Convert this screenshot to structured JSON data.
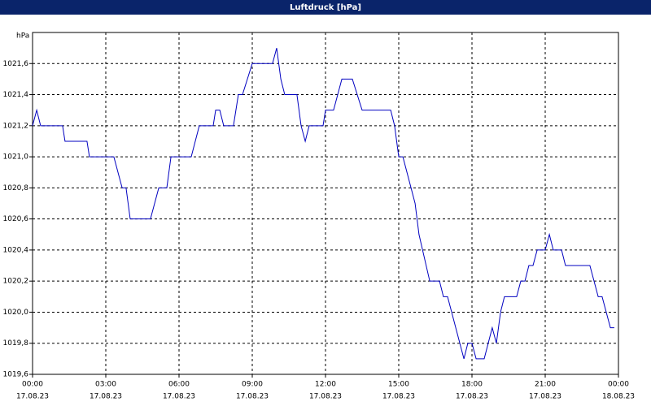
{
  "chart_data": {
    "type": "line",
    "title": "Luftdruck [hPa]",
    "ylabel": "hPa",
    "color": "#0000c0",
    "grid": true,
    "x": [
      0,
      0.17,
      0.33,
      1.23,
      1.33,
      2.23,
      2.33,
      3.33,
      3.67,
      3.83,
      4,
      4.83,
      5.17,
      5.5,
      5.67,
      6.5,
      6.83,
      7.4,
      7.5,
      7.67,
      7.83,
      8.23,
      8.43,
      8.6,
      9,
      9.83,
      10,
      10.17,
      10.33,
      10.83,
      11,
      11.17,
      11.33,
      11.9,
      12,
      12.33,
      12.67,
      13.1,
      13.5,
      14.67,
      14.83,
      15,
      15.17,
      15.67,
      15.83,
      16.27,
      16.67,
      16.83,
      17,
      17.67,
      17.83,
      18,
      18.17,
      18.5,
      18.83,
      19,
      19.17,
      19.33,
      19.83,
      20,
      20.17,
      20.33,
      20.5,
      20.67,
      21,
      21.17,
      21.33,
      21.67,
      21.83,
      22.83,
      23.17,
      23.33,
      23.67,
      23.83
    ],
    "values": [
      1021.2,
      1021.3,
      1021.2,
      1021.2,
      1021.1,
      1021.1,
      1021.0,
      1021.0,
      1020.8,
      1020.8,
      1020.6,
      1020.6,
      1020.8,
      1020.8,
      1021.0,
      1021.0,
      1021.2,
      1021.2,
      1021.3,
      1021.3,
      1021.2,
      1021.2,
      1021.4,
      1021.4,
      1021.6,
      1021.6,
      1021.7,
      1021.5,
      1021.4,
      1021.4,
      1021.2,
      1021.1,
      1021.2,
      1021.2,
      1021.3,
      1021.3,
      1021.5,
      1021.5,
      1021.3,
      1021.3,
      1021.2,
      1021.0,
      1021.0,
      1020.7,
      1020.5,
      1020.2,
      1020.2,
      1020.1,
      1020.1,
      1019.7,
      1019.8,
      1019.8,
      1019.7,
      1019.7,
      1019.9,
      1019.8,
      1020.0,
      1020.1,
      1020.1,
      1020.2,
      1020.2,
      1020.3,
      1020.3,
      1020.4,
      1020.4,
      1020.5,
      1020.4,
      1020.4,
      1020.3,
      1020.3,
      1020.1,
      1020.1,
      1019.9,
      1019.9
    ],
    "xlim": [
      0,
      24
    ],
    "ylim": [
      1019.6,
      1021.8
    ],
    "xticks": [
      {
        "value": 0,
        "label": [
          "00:00",
          "17.08.23"
        ]
      },
      {
        "value": 3,
        "label": [
          "03:00",
          "17.08.23"
        ]
      },
      {
        "value": 6,
        "label": [
          "06:00",
          "17.08.23"
        ]
      },
      {
        "value": 9,
        "label": [
          "09:00",
          "17.08.23"
        ]
      },
      {
        "value": 12,
        "label": [
          "12:00",
          "17.08.23"
        ]
      },
      {
        "value": 15,
        "label": [
          "15:00",
          "17.08.23"
        ]
      },
      {
        "value": 18,
        "label": [
          "18:00",
          "17.08.23"
        ]
      },
      {
        "value": 21,
        "label": [
          "21:00",
          "17.08.23"
        ]
      },
      {
        "value": 24,
        "label": [
          "00:00",
          "18.08.23"
        ]
      }
    ],
    "yticks": [
      {
        "value": 1019.6,
        "label": "1019,6"
      },
      {
        "value": 1019.8,
        "label": "1019,8"
      },
      {
        "value": 1020.0,
        "label": "1020,0"
      },
      {
        "value": 1020.2,
        "label": "1020,2"
      },
      {
        "value": 1020.4,
        "label": "1020,4"
      },
      {
        "value": 1020.6,
        "label": "1020,6"
      },
      {
        "value": 1020.8,
        "label": "1020,8"
      },
      {
        "value": 1021.0,
        "label": "1021,0"
      },
      {
        "value": 1021.2,
        "label": "1021,2"
      },
      {
        "value": 1021.4,
        "label": "1021,4"
      },
      {
        "value": 1021.6,
        "label": "1021,6"
      }
    ]
  }
}
